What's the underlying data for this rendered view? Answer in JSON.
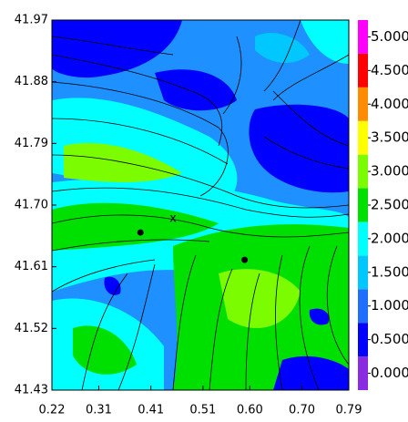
{
  "chart_data": {
    "type": "contour",
    "xlim": [
      0.22,
      0.79
    ],
    "ylim": [
      41.43,
      41.97
    ],
    "xticks": [
      0.22,
      0.31,
      0.41,
      0.51,
      {
        "value": 0.6,
        "label": "0.60"
      },
      {
        "value": 0.7,
        "label": "0.70"
      },
      0.79
    ],
    "yticks": [
      41.43,
      41.52,
      41.61,
      {
        "value": 41.7,
        "label": "41.70"
      },
      41.79,
      41.88,
      41.97
    ],
    "points": {
      "x": [
        0.39,
        0.59
      ],
      "y": [
        41.66,
        41.62
      ],
      "color": "#000000"
    },
    "annotations": [
      "x"
    ],
    "colorbar": {
      "bins": [
        -0.25,
        0.25,
        0.75,
        1.25,
        1.75,
        2.25,
        2.75,
        3.25,
        3.75,
        4.25,
        4.75,
        5.25
      ],
      "colors": [
        "#8a2be2",
        "#0000ff",
        "#1e6eff",
        "#00c8ff",
        "#00ffff",
        "#00e000",
        "#7cfc00",
        "#ffff00",
        "#ff8c00",
        "#ff0000",
        "#ff00ff"
      ],
      "ticks": [
        {
          "value": 0,
          "label": "0.000"
        },
        {
          "value": 0.5,
          "label": "0.500"
        },
        {
          "value": 1,
          "label": "1.000"
        },
        {
          "value": 1.5,
          "label": "1.500"
        },
        {
          "value": 2,
          "label": "2.000"
        },
        {
          "value": 2.5,
          "label": "2.500"
        },
        {
          "value": 3,
          "label": "3.000"
        },
        {
          "value": 3.5,
          "label": "3.500"
        },
        {
          "value": 4,
          "label": "4.000"
        },
        {
          "value": 4.5,
          "label": "4.500"
        },
        {
          "value": 5,
          "label": "5.000"
        }
      ]
    }
  }
}
